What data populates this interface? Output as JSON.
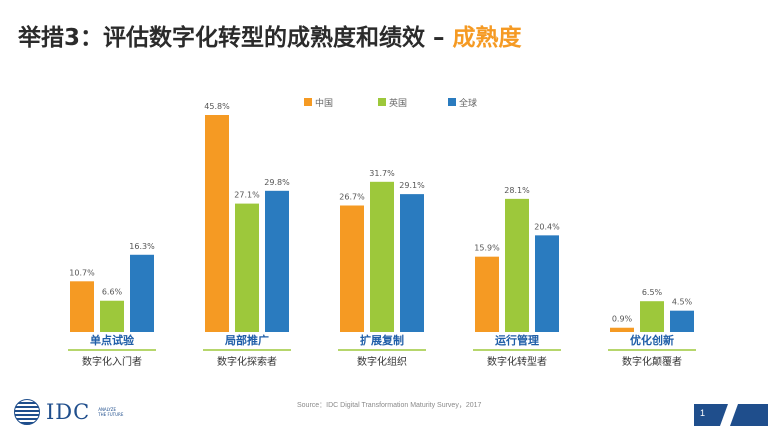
{
  "slide": {
    "title_main": "举措3：评估数字化转型的成熟度和绩效 – ",
    "title_highlight": "成熟度",
    "source": "Source：IDC Digital Transformation Maturity Survey，2017",
    "page_number": "1",
    "logo_text": "IDC",
    "logo_tagline": "ANALYZE THE FUTURE"
  },
  "colors": {
    "china": "#f59a23",
    "uk": "#9dc83b",
    "global": "#2a7bbf",
    "stage_label": "#1f5ea8",
    "sub_label": "#333333",
    "value_label": "#555555",
    "title_highlight": "#f59a23"
  },
  "chart_data": {
    "type": "bar",
    "categories": [
      "单点试验",
      "局部推广",
      "扩展复制",
      "运行管理",
      "优化创新"
    ],
    "sub_categories": [
      "数字化入门者",
      "数字化探索者",
      "数字化组织",
      "数字化转型者",
      "数字化颠覆者"
    ],
    "series": [
      {
        "name": "中国",
        "values": [
          10.7,
          45.8,
          26.7,
          15.9,
          0.9
        ],
        "labels": [
          "10.7%",
          "45.8%",
          "26.7%",
          "15.9%",
          "0.9%"
        ]
      },
      {
        "name": "英国",
        "values": [
          6.6,
          27.1,
          31.7,
          28.1,
          6.5
        ],
        "labels": [
          "6.6%",
          "27.1%",
          "31.7%",
          "28.1%",
          "6.5%"
        ]
      },
      {
        "name": "全球",
        "values": [
          16.3,
          29.8,
          29.1,
          20.4,
          4.5
        ],
        "labels": [
          "16.3%",
          "29.8%",
          "29.1%",
          "20.4%",
          "4.5%"
        ]
      }
    ],
    "legend_position": "top-center",
    "grid": false,
    "axis_visible": false,
    "ylim": [
      0,
      45.8
    ]
  }
}
